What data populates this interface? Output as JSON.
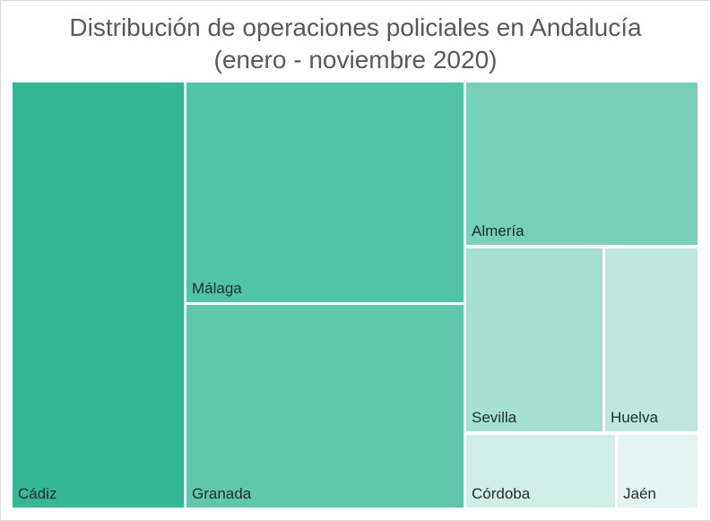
{
  "chart_data": {
    "type": "treemap",
    "title": "Distribución de operaciones policiales en Andalucía",
    "subtitle": "(enero - noviembre 2020)",
    "items": [
      {
        "name": "Cádiz",
        "value": 20.4,
        "color": "#35b795"
      },
      {
        "name": "Málaga",
        "value": 16.1,
        "color": "#51c3a6"
      },
      {
        "name": "Granada",
        "value": 14.0,
        "color": "#60c7ad"
      },
      {
        "name": "Almería",
        "value": 10.8,
        "color": "#78d0b9"
      },
      {
        "name": "Sevilla",
        "value": 8.6,
        "color": "#a5e0d1"
      },
      {
        "name": "Huelva",
        "value": 6.6,
        "color": "#bfe8dd"
      },
      {
        "name": "Córdoba",
        "value": 4.5,
        "color": "#d1eee6"
      },
      {
        "name": "Jaén",
        "value": 2.3,
        "color": "#e4f5f1"
      }
    ]
  }
}
